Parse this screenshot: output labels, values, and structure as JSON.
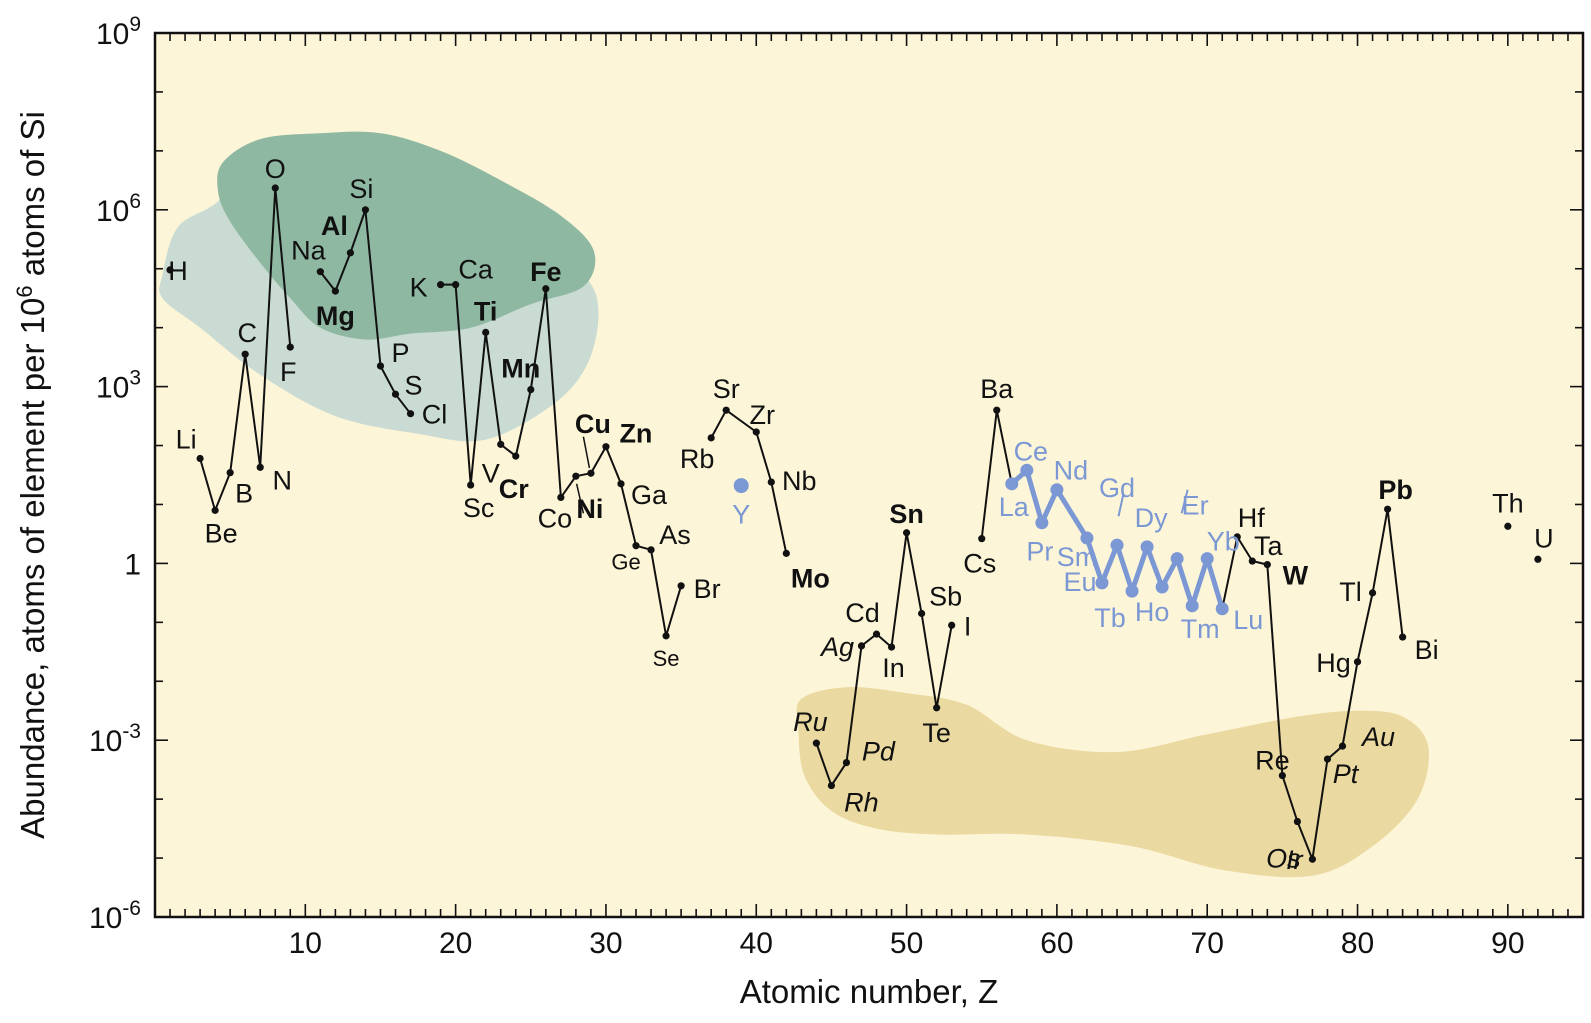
{
  "chart_data": {
    "type": "line",
    "title": "",
    "xlabel": "Atomic number, Z",
    "ylabel": "Abundance, atoms of element per 10^6 atoms of Si",
    "ylabel_parts": [
      "Abundance, atoms of element per 10",
      "6",
      " atoms of Si"
    ],
    "xlim": [
      0,
      95
    ],
    "ylim_log10": [
      -6,
      9
    ],
    "yscale": "log",
    "x_ticks": [
      10,
      20,
      30,
      40,
      50,
      60,
      70,
      80,
      90
    ],
    "y_ticks": [
      {
        "exp": -6,
        "base": "10",
        "sup": "-6"
      },
      {
        "exp": -3,
        "base": "10",
        "sup": "-3"
      },
      {
        "exp": 0,
        "text": "1"
      },
      {
        "exp": 3,
        "base": "10",
        "sup": "3"
      },
      {
        "exp": 6,
        "base": "10",
        "sup": "6"
      },
      {
        "exp": 9,
        "base": "10",
        "sup": "9"
      }
    ],
    "grid": false,
    "background": "#fdf5d8",
    "regions": [
      {
        "name": "light-green-region",
        "color": "#c9dbd2"
      },
      {
        "name": "dark-green-region",
        "color": "#8fb8a2"
      },
      {
        "name": "gold-region",
        "color": "#ead9a0"
      }
    ],
    "series": [
      {
        "color": "#111111",
        "segments": [
          [
            {
              "symbol": "Li",
              "z": 3,
              "log10": 1.78
            },
            {
              "symbol": "Be",
              "z": 4,
              "log10": 0.9
            },
            {
              "symbol": "B",
              "z": 5,
              "log10": 1.54
            },
            {
              "symbol": "C",
              "z": 6,
              "log10": 3.55
            },
            {
              "symbol": "N",
              "z": 7,
              "log10": 1.63
            },
            {
              "symbol": "O",
              "z": 8,
              "log10": 6.37
            },
            {
              "symbol": "F",
              "z": 9,
              "log10": 3.67
            }
          ],
          [
            {
              "symbol": "Na",
              "z": 11,
              "log10": 4.95
            },
            {
              "symbol": "Mg",
              "z": 12,
              "log10": 4.62
            },
            {
              "symbol": "Al",
              "z": 13,
              "log10": 5.27
            },
            {
              "symbol": "Si",
              "z": 14,
              "log10": 6.0
            },
            {
              "symbol": "P",
              "z": 15,
              "log10": 3.35
            },
            {
              "symbol": "S",
              "z": 16,
              "log10": 2.87
            },
            {
              "symbol": "Cl",
              "z": 17,
              "log10": 2.54
            }
          ],
          [
            {
              "symbol": "K",
              "z": 19,
              "log10": 4.73
            },
            {
              "symbol": "Ca",
              "z": 20,
              "log10": 4.73
            },
            {
              "symbol": "Sc",
              "z": 21,
              "log10": 1.33
            },
            {
              "symbol": "Ti",
              "z": 22,
              "log10": 3.92
            },
            {
              "symbol": "V",
              "z": 23,
              "log10": 2.02
            },
            {
              "symbol": "Cr",
              "z": 24,
              "log10": 1.82
            },
            {
              "symbol": "Mn",
              "z": 25,
              "log10": 2.95
            },
            {
              "symbol": "Fe",
              "z": 26,
              "log10": 4.66
            },
            {
              "symbol": "Co",
              "z": 27,
              "log10": 1.12
            },
            {
              "symbol": "Ni",
              "z": 28,
              "log10": 1.48
            },
            {
              "symbol": "Cu",
              "z": 29,
              "log10": 1.53
            },
            {
              "symbol": "Zn",
              "z": 30,
              "log10": 1.98
            },
            {
              "symbol": "Ga",
              "z": 31,
              "log10": 1.35
            },
            {
              "symbol": "Ge",
              "z": 32,
              "log10": 0.3
            },
            {
              "symbol": "As",
              "z": 33,
              "log10": 0.23
            },
            {
              "symbol": "Se",
              "z": 34,
              "log10": -1.23
            },
            {
              "symbol": "Br",
              "z": 35,
              "log10": -0.38
            }
          ],
          [
            {
              "symbol": "Rb",
              "z": 37,
              "log10": 2.13
            },
            {
              "symbol": "Sr",
              "z": 38,
              "log10": 2.6
            },
            {
              "symbol": "Zr",
              "z": 40,
              "log10": 2.23
            },
            {
              "symbol": "Nb",
              "z": 41,
              "log10": 1.38
            },
            {
              "symbol": "Mo",
              "z": 42,
              "log10": 0.17
            }
          ],
          [
            {
              "symbol": "Ru",
              "z": 44,
              "log10": -3.05
            },
            {
              "symbol": "Rh",
              "z": 45,
              "log10": -3.77
            },
            {
              "symbol": "Pd",
              "z": 46,
              "log10": -3.38
            },
            {
              "symbol": "Ag",
              "z": 47,
              "log10": -1.4
            },
            {
              "symbol": "Cd",
              "z": 48,
              "log10": -1.2
            },
            {
              "symbol": "In",
              "z": 49,
              "log10": -1.42
            },
            {
              "symbol": "Sn",
              "z": 50,
              "log10": 0.52
            },
            {
              "symbol": "Sb",
              "z": 51,
              "log10": -0.85
            },
            {
              "symbol": "Te",
              "z": 52,
              "log10": -2.45
            },
            {
              "symbol": "I",
              "z": 53,
              "log10": -1.05
            }
          ],
          [
            {
              "symbol": "Cs",
              "z": 55,
              "log10": 0.42
            },
            {
              "symbol": "Ba",
              "z": 56,
              "log10": 2.6
            },
            {
              "symbol": "La",
              "z": 57,
              "log10": 1.35
            }
          ],
          [
            {
              "symbol": "Lu",
              "z": 71,
              "log10": -0.77
            },
            {
              "symbol": "Hf",
              "z": 72,
              "log10": 0.45
            },
            {
              "symbol": "Ta",
              "z": 73,
              "log10": 0.04
            },
            {
              "symbol": "W",
              "z": 74,
              "log10": -0.02
            },
            {
              "symbol": "Re",
              "z": 75,
              "log10": -3.6
            },
            {
              "symbol": "Os",
              "z": 76,
              "log10": -4.38
            },
            {
              "symbol": "Ir",
              "z": 77,
              "log10": -5.02
            },
            {
              "symbol": "Pt",
              "z": 78,
              "log10": -3.32
            },
            {
              "symbol": "Au",
              "z": 79,
              "log10": -3.1
            },
            {
              "symbol": "Hg",
              "z": 80,
              "log10": -1.67
            },
            {
              "symbol": "Tl",
              "z": 81,
              "log10": -0.5
            },
            {
              "symbol": "Pb",
              "z": 82,
              "log10": 0.92
            },
            {
              "symbol": "Bi",
              "z": 83,
              "log10": -1.25
            }
          ]
        ],
        "isolated": [
          {
            "symbol": "H",
            "z": 1,
            "log10": 4.98
          },
          {
            "symbol": "Th",
            "z": 90,
            "log10": 0.63
          },
          {
            "symbol": "U",
            "z": 92,
            "log10": 0.07
          }
        ]
      },
      {
        "color": "#7b98d4",
        "segments": [
          [
            {
              "symbol": "La",
              "z": 57,
              "log10": 1.35
            },
            {
              "symbol": "Ce",
              "z": 58,
              "log10": 1.58
            },
            {
              "symbol": "Pr",
              "z": 59,
              "log10": 0.69
            },
            {
              "symbol": "Nd",
              "z": 60,
              "log10": 1.25
            },
            {
              "symbol": "Sm",
              "z": 62,
              "log10": 0.43
            },
            {
              "symbol": "Eu",
              "z": 63,
              "log10": -0.33
            },
            {
              "symbol": "Gd",
              "z": 64,
              "log10": 0.31
            },
            {
              "symbol": "Tb",
              "z": 65,
              "log10": -0.47
            },
            {
              "symbol": "Dy",
              "z": 66,
              "log10": 0.28
            },
            {
              "symbol": "Ho",
              "z": 67,
              "log10": -0.4
            },
            {
              "symbol": "Er",
              "z": 68,
              "log10": 0.08
            },
            {
              "symbol": "Tm",
              "z": 69,
              "log10": -0.72
            },
            {
              "symbol": "Yb",
              "z": 70,
              "log10": 0.08
            },
            {
              "symbol": "Lu",
              "z": 71,
              "log10": -0.77
            }
          ]
        ],
        "isolated": [
          {
            "symbol": "Y",
            "z": 39,
            "log10": 1.32
          }
        ]
      }
    ],
    "labels": [
      {
        "text": "H",
        "z": 1,
        "log10": 4.98,
        "style": ""
      },
      {
        "text": "Li",
        "z": 3,
        "log10": 1.78,
        "style": ""
      },
      {
        "text": "Be",
        "z": 4,
        "log10": 0.9,
        "style": ""
      },
      {
        "text": "B",
        "z": 5,
        "log10": 1.54,
        "style": ""
      },
      {
        "text": "C",
        "z": 6,
        "log10": 3.55,
        "style": ""
      },
      {
        "text": "N",
        "z": 7,
        "log10": 1.63,
        "style": ""
      },
      {
        "text": "O",
        "z": 8,
        "log10": 6.37,
        "style": ""
      },
      {
        "text": "F",
        "z": 9,
        "log10": 3.67,
        "style": ""
      },
      {
        "text": "Na",
        "z": 11,
        "log10": 4.95,
        "style": ""
      },
      {
        "text": "Mg",
        "z": 12,
        "log10": 4.62,
        "style": "bold"
      },
      {
        "text": "Al",
        "z": 13,
        "log10": 5.27,
        "style": "bold"
      },
      {
        "text": "Si",
        "z": 14,
        "log10": 6.0,
        "style": ""
      },
      {
        "text": "P",
        "z": 15,
        "log10": 3.35,
        "style": ""
      },
      {
        "text": "S",
        "z": 16,
        "log10": 2.87,
        "style": ""
      },
      {
        "text": "Cl",
        "z": 17,
        "log10": 2.54,
        "style": ""
      },
      {
        "text": "K",
        "z": 19,
        "log10": 4.73,
        "style": ""
      },
      {
        "text": "Ca",
        "z": 20,
        "log10": 4.73,
        "style": ""
      },
      {
        "text": "Sc",
        "z": 21,
        "log10": 1.33,
        "style": ""
      },
      {
        "text": "Ti",
        "z": 22,
        "log10": 3.92,
        "style": "bold"
      },
      {
        "text": "V",
        "z": 23,
        "log10": 2.02,
        "style": ""
      },
      {
        "text": "Cr",
        "z": 24,
        "log10": 1.82,
        "style": "bold"
      },
      {
        "text": "Mn",
        "z": 25,
        "log10": 2.95,
        "style": "bold"
      },
      {
        "text": "Fe",
        "z": 26,
        "log10": 4.66,
        "style": "bold"
      },
      {
        "text": "Co",
        "z": 27,
        "log10": 1.12,
        "style": ""
      },
      {
        "text": "Ni",
        "z": 28,
        "log10": 1.48,
        "style": "bold"
      },
      {
        "text": "Cu",
        "z": 29,
        "log10": 1.53,
        "style": "bold"
      },
      {
        "text": "Zn",
        "z": 30,
        "log10": 1.98,
        "style": "bold"
      },
      {
        "text": "Ga",
        "z": 31,
        "log10": 1.35,
        "style": ""
      },
      {
        "text": "Ge",
        "z": 32,
        "log10": 0.3,
        "style": "small"
      },
      {
        "text": "As",
        "z": 33,
        "log10": 0.23,
        "style": ""
      },
      {
        "text": "Se",
        "z": 34,
        "log10": -1.23,
        "style": "small"
      },
      {
        "text": "Br",
        "z": 35,
        "log10": -0.38,
        "style": ""
      },
      {
        "text": "Rb",
        "z": 37,
        "log10": 2.13,
        "style": ""
      },
      {
        "text": "Sr",
        "z": 38,
        "log10": 2.6,
        "style": ""
      },
      {
        "text": "Y",
        "z": 39,
        "log10": 1.32,
        "style": "blue"
      },
      {
        "text": "Zr",
        "z": 40,
        "log10": 2.23,
        "style": ""
      },
      {
        "text": "Nb",
        "z": 41,
        "log10": 1.38,
        "style": ""
      },
      {
        "text": "Mo",
        "z": 42,
        "log10": 0.17,
        "style": "bold"
      },
      {
        "text": "Ru",
        "z": 44,
        "log10": -3.05,
        "style": "italic"
      },
      {
        "text": "Rh",
        "z": 45,
        "log10": -3.77,
        "style": "italic"
      },
      {
        "text": "Pd",
        "z": 46,
        "log10": -3.38,
        "style": "italic"
      },
      {
        "text": "Ag",
        "z": 47,
        "log10": -1.4,
        "style": "italic"
      },
      {
        "text": "Cd",
        "z": 48,
        "log10": -1.2,
        "style": ""
      },
      {
        "text": "In",
        "z": 49,
        "log10": -1.42,
        "style": ""
      },
      {
        "text": "Sn",
        "z": 50,
        "log10": 0.52,
        "style": "bold"
      },
      {
        "text": "Sb",
        "z": 51,
        "log10": -0.85,
        "style": ""
      },
      {
        "text": "Te",
        "z": 52,
        "log10": -2.45,
        "style": ""
      },
      {
        "text": "I",
        "z": 53,
        "log10": -1.05,
        "style": ""
      },
      {
        "text": "Cs",
        "z": 55,
        "log10": 0.42,
        "style": ""
      },
      {
        "text": "Ba",
        "z": 56,
        "log10": 2.6,
        "style": ""
      },
      {
        "text": "La",
        "z": 57,
        "log10": 1.35,
        "style": "blue"
      },
      {
        "text": "Ce",
        "z": 58,
        "log10": 1.58,
        "style": "blue"
      },
      {
        "text": "Pr",
        "z": 59,
        "log10": 0.69,
        "style": "blue"
      },
      {
        "text": "Nd",
        "z": 60,
        "log10": 1.25,
        "style": "blue"
      },
      {
        "text": "Sm",
        "z": 62,
        "log10": 0.43,
        "style": "blue"
      },
      {
        "text": "Eu",
        "z": 63,
        "log10": -0.33,
        "style": "blue"
      },
      {
        "text": "Gd",
        "z": 64,
        "log10": 0.31,
        "style": "blue"
      },
      {
        "text": "Tb",
        "z": 65,
        "log10": -0.47,
        "style": "blue"
      },
      {
        "text": "Dy",
        "z": 66,
        "log10": 0.28,
        "style": "blue"
      },
      {
        "text": "Ho",
        "z": 67,
        "log10": -0.4,
        "style": "blue"
      },
      {
        "text": "Er",
        "z": 68,
        "log10": 0.08,
        "style": "blue"
      },
      {
        "text": "Tm",
        "z": 69,
        "log10": -0.72,
        "style": "blue"
      },
      {
        "text": "Yb",
        "z": 70,
        "log10": 0.08,
        "style": "blue"
      },
      {
        "text": "Lu",
        "z": 71,
        "log10": -0.77,
        "style": "blue"
      },
      {
        "text": "Hf",
        "z": 72,
        "log10": 0.45,
        "style": ""
      },
      {
        "text": "Ta",
        "z": 73,
        "log10": 0.04,
        "style": ""
      },
      {
        "text": "W",
        "z": 74,
        "log10": -0.02,
        "style": "bold"
      },
      {
        "text": "Re",
        "z": 75,
        "log10": -3.6,
        "style": ""
      },
      {
        "text": "Os",
        "z": 76,
        "log10": -4.38,
        "style": "italic"
      },
      {
        "text": "Ir",
        "z": 77,
        "log10": -5.02,
        "style": "italic"
      },
      {
        "text": "Pt",
        "z": 78,
        "log10": -3.32,
        "style": "italic"
      },
      {
        "text": "Au",
        "z": 79,
        "log10": -3.1,
        "style": "italic"
      },
      {
        "text": "Hg",
        "z": 80,
        "log10": -1.67,
        "style": ""
      },
      {
        "text": "Tl",
        "z": 81,
        "log10": -0.5,
        "style": ""
      },
      {
        "text": "Pb",
        "z": 82,
        "log10": 0.92,
        "style": "bold"
      },
      {
        "text": "Bi",
        "z": 83,
        "log10": -1.25,
        "style": ""
      },
      {
        "text": "Th",
        "z": 90,
        "log10": 0.63,
        "style": ""
      },
      {
        "text": "U",
        "z": 92,
        "log10": 0.07,
        "style": ""
      }
    ]
  }
}
